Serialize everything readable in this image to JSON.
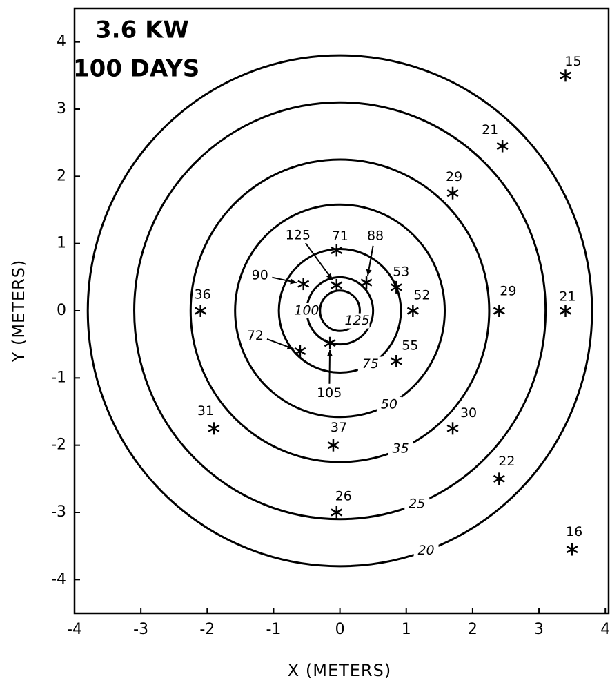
{
  "chart_data": {
    "type": "scatter",
    "annotations": [
      "3.6 KW",
      "100 DAYS"
    ],
    "x_label": "X (METERS)",
    "y_label": "Y (METERS)",
    "xlim": [
      -4,
      4.05
    ],
    "ylim": [
      -4.5,
      4.5
    ],
    "xticks": [
      -4,
      -3,
      -2,
      -1,
      0,
      1,
      2,
      3,
      4
    ],
    "yticks": [
      -4,
      -3,
      -2,
      -1,
      0,
      1,
      2,
      3,
      4
    ],
    "contours": [
      {
        "level": 20,
        "radius": 3.8
      },
      {
        "level": 25,
        "radius": 3.1
      },
      {
        "level": 35,
        "radius": 2.25
      },
      {
        "level": 50,
        "radius": 1.58
      },
      {
        "level": 75,
        "radius": 0.92
      },
      {
        "level": 100,
        "radius": 0.5
      },
      {
        "level": 125,
        "radius": 0.3
      }
    ],
    "points": {
      "x": [
        3.4,
        2.45,
        1.7,
        -0.05,
        0.4,
        -0.05,
        -0.55,
        0.85,
        1.1,
        -2.1,
        2.4,
        3.4,
        -0.6,
        -0.15,
        0.85,
        -1.9,
        -0.1,
        1.7,
        2.4,
        -0.05,
        3.5
      ],
      "y": [
        3.5,
        2.45,
        1.75,
        0.9,
        0.42,
        0.38,
        0.4,
        0.35,
        0,
        0,
        0,
        0,
        -0.6,
        -0.48,
        -0.75,
        -1.75,
        -2,
        -1.75,
        -2.5,
        -3,
        -3.55
      ],
      "values": [
        15,
        21,
        29,
        71,
        88,
        125,
        90,
        53,
        52,
        36,
        29,
        21,
        72,
        105,
        55,
        31,
        37,
        30,
        22,
        26,
        16
      ]
    }
  }
}
